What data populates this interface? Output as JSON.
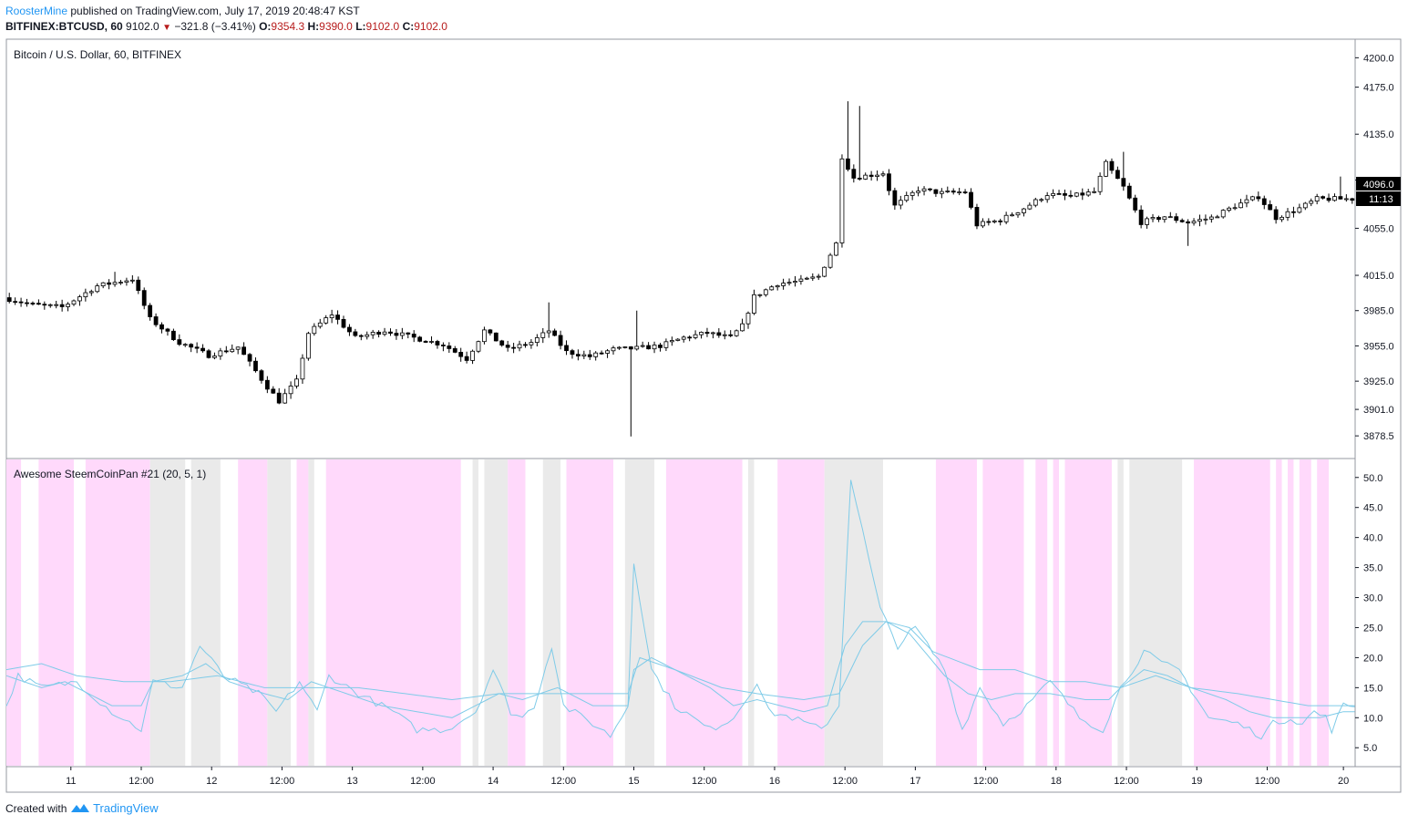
{
  "header": {
    "user": "RoosterMine",
    "published": " published on TradingView.com, July 17, 2019 20:48:47 KST",
    "symbol": "BITFINEX:BTCUSD, 60",
    "price": "9102.0",
    "arrow": "▼",
    "change": "−321.8 (−3.41%)",
    "o_label": "O:",
    "o_value": "9354.3",
    "h_label": "H:",
    "h_value": "9390.0",
    "l_label": "L:",
    "l_value": "9102.0",
    "c_label": "C:",
    "c_value": "9102.0"
  },
  "footer": {
    "created": "Created with",
    "brand": "TradingView"
  },
  "colors": {
    "bull": "#ffffff",
    "bear": "#000000",
    "wick": "#000000",
    "pink": "#ffd9fb",
    "gray": "#eaeaea",
    "line": "#7fcbe8",
    "axis": "#131722"
  },
  "chart_data": [
    {
      "type": "candlestick",
      "title": "Bitcoin / U.S. Dollar, 60, BITFINEX",
      "ylim": [
        3860,
        4215
      ],
      "y_ticks": [
        4200.0,
        4175.0,
        4135.0,
        4096.0,
        4055.0,
        4015.0,
        3985.0,
        3955.0,
        3925.0,
        3901.0,
        3878.5
      ],
      "y_tick_labels": [
        "4200.0",
        "4175.0",
        "4135.0",
        "4096.0",
        "4055.0",
        "4015.0",
        "3985.0",
        "3955.0",
        "3925.0",
        "3901.0",
        "3878.5"
      ],
      "last_price_label": "4096.0",
      "countdown_label": "11:13",
      "x_range": [
        0,
        230
      ],
      "x_ticks": [
        11,
        23,
        35,
        47,
        59,
        71,
        83,
        95,
        107,
        119,
        131,
        143,
        155,
        167,
        179,
        191,
        203,
        215,
        228
      ],
      "x_tick_labels": [
        "11",
        "12:00",
        "12",
        "12:00",
        "13",
        "12:00",
        "14",
        "12:00",
        "15",
        "12:00",
        "16",
        "12:00",
        "17",
        "12:00",
        "18",
        "12:00",
        "19",
        "12:00",
        "20"
      ],
      "anchors": [
        [
          0,
          3996
        ],
        [
          5,
          3990
        ],
        [
          10,
          3988
        ],
        [
          16,
          4006
        ],
        [
          22,
          4012
        ],
        [
          25,
          3978
        ],
        [
          30,
          3958
        ],
        [
          35,
          3947
        ],
        [
          40,
          3954
        ],
        [
          45,
          3920
        ],
        [
          47,
          3908
        ],
        [
          50,
          3925
        ],
        [
          52,
          3966
        ],
        [
          56,
          3982
        ],
        [
          60,
          3962
        ],
        [
          65,
          3968
        ],
        [
          70,
          3962
        ],
        [
          75,
          3956
        ],
        [
          79,
          3944
        ],
        [
          82,
          3968
        ],
        [
          86,
          3952
        ],
        [
          90,
          3958
        ],
        [
          93,
          3968
        ],
        [
          96,
          3950
        ],
        [
          100,
          3946
        ],
        [
          104,
          3952
        ],
        [
          108,
          3953
        ],
        [
          112,
          3955
        ],
        [
          116,
          3962
        ],
        [
          120,
          3966
        ],
        [
          124,
          3962
        ],
        [
          126,
          3972
        ],
        [
          128,
          3997
        ],
        [
          132,
          4008
        ],
        [
          136,
          4010
        ],
        [
          139,
          4014
        ],
        [
          142,
          4042
        ],
        [
          143,
          4116
        ],
        [
          145,
          4098
        ],
        [
          150,
          4102
        ],
        [
          152,
          4074
        ],
        [
          156,
          4088
        ],
        [
          160,
          4085
        ],
        [
          164,
          4086
        ],
        [
          166,
          4058
        ],
        [
          170,
          4062
        ],
        [
          174,
          4072
        ],
        [
          178,
          4084
        ],
        [
          182,
          4082
        ],
        [
          186,
          4086
        ],
        [
          188,
          4110
        ],
        [
          191,
          4090
        ],
        [
          194,
          4060
        ],
        [
          198,
          4065
        ],
        [
          202,
          4060
        ],
        [
          206,
          4064
        ],
        [
          210,
          4074
        ],
        [
          214,
          4082
        ],
        [
          217,
          4064
        ],
        [
          221,
          4072
        ],
        [
          224,
          4080
        ],
        [
          228,
          4080
        ]
      ],
      "spikes": [
        [
          106,
          3878
        ],
        [
          107,
          3985
        ],
        [
          143,
          4163
        ],
        [
          145,
          4159
        ],
        [
          18,
          4018
        ],
        [
          92,
          3992
        ],
        [
          190,
          4120
        ],
        [
          201,
          4040
        ],
        [
          227,
          4099
        ]
      ]
    },
    {
      "type": "line",
      "title": "Awesome SteemCoinPan #21 (20, 5, 1)",
      "ylim": [
        2,
        53
      ],
      "y_ticks": [
        50.0,
        45.0,
        40.0,
        35.0,
        30.0,
        25.0,
        20.0,
        15.0,
        10.0,
        5.0
      ],
      "y_tick_labels": [
        "50.0",
        "45.0",
        "40.0",
        "35.0",
        "30.0",
        "25.0",
        "20.0",
        "15.0",
        "10.0",
        "5.0"
      ],
      "bands": [
        {
          "from": 0,
          "to": 2.5,
          "color": "pink"
        },
        {
          "from": 5.5,
          "to": 11.5,
          "color": "pink"
        },
        {
          "from": 13.5,
          "to": 24.5,
          "color": "pink"
        },
        {
          "from": 24.5,
          "to": 30.5,
          "color": "gray"
        },
        {
          "from": 31.5,
          "to": 36.5,
          "color": "gray"
        },
        {
          "from": 39.5,
          "to": 44.5,
          "color": "pink"
        },
        {
          "from": 44.5,
          "to": 48.5,
          "color": "gray"
        },
        {
          "from": 49.5,
          "to": 51.5,
          "color": "pink"
        },
        {
          "from": 51.5,
          "to": 52.5,
          "color": "gray"
        },
        {
          "from": 54.5,
          "to": 77.5,
          "color": "pink"
        },
        {
          "from": 79.5,
          "to": 80.5,
          "color": "gray"
        },
        {
          "from": 81.5,
          "to": 85.5,
          "color": "gray"
        },
        {
          "from": 85.5,
          "to": 88.5,
          "color": "pink"
        },
        {
          "from": 91.5,
          "to": 94.5,
          "color": "gray"
        },
        {
          "from": 95.5,
          "to": 103.5,
          "color": "pink"
        },
        {
          "from": 105.5,
          "to": 110.5,
          "color": "gray"
        },
        {
          "from": 112.5,
          "to": 125.5,
          "color": "pink"
        },
        {
          "from": 126.5,
          "to": 127.5,
          "color": "gray"
        },
        {
          "from": 131.5,
          "to": 139.5,
          "color": "pink"
        },
        {
          "from": 139.5,
          "to": 149.5,
          "color": "gray"
        },
        {
          "from": 158.5,
          "to": 165.5,
          "color": "pink"
        },
        {
          "from": 166.5,
          "to": 173.5,
          "color": "pink"
        },
        {
          "from": 175.5,
          "to": 177.5,
          "color": "pink"
        },
        {
          "from": 178.5,
          "to": 179.5,
          "color": "pink"
        },
        {
          "from": 180.5,
          "to": 188.5,
          "color": "pink"
        },
        {
          "from": 189.5,
          "to": 190.5,
          "color": "gray"
        },
        {
          "from": 191.5,
          "to": 200.5,
          "color": "gray"
        },
        {
          "from": 202.5,
          "to": 215.5,
          "color": "pink"
        },
        {
          "from": 216.5,
          "to": 217.5,
          "color": "pink"
        },
        {
          "from": 218.5,
          "to": 219.5,
          "color": "pink"
        },
        {
          "from": 220.5,
          "to": 222.5,
          "color": "pink"
        },
        {
          "from": 223.5,
          "to": 225.5,
          "color": "pink"
        }
      ],
      "series": [
        {
          "values_anchors": [
            [
              0,
              12
            ],
            [
              2,
              17
            ],
            [
              6,
              15
            ],
            [
              12,
              16
            ],
            [
              18,
              11
            ],
            [
              23,
              8
            ],
            [
              25,
              16
            ],
            [
              30,
              15
            ],
            [
              33,
              22
            ],
            [
              37,
              17
            ],
            [
              43,
              14
            ],
            [
              46,
              11
            ],
            [
              50,
              16
            ],
            [
              53,
              11
            ],
            [
              55,
              17
            ],
            [
              60,
              14
            ],
            [
              66,
              11
            ],
            [
              70,
              8
            ],
            [
              75,
              8
            ],
            [
              80,
              11
            ],
            [
              83,
              18
            ],
            [
              86,
              11
            ],
            [
              88,
              10
            ],
            [
              90,
              12
            ],
            [
              93,
              22
            ],
            [
              95,
              12
            ],
            [
              100,
              9
            ],
            [
              103,
              7
            ],
            [
              106,
              12
            ],
            [
              107,
              36
            ],
            [
              110,
              18
            ],
            [
              114,
              12
            ],
            [
              120,
              8
            ],
            [
              124,
              10
            ],
            [
              128,
              16
            ],
            [
              130,
              11
            ],
            [
              134,
              10
            ],
            [
              139,
              8
            ],
            [
              142,
              12
            ],
            [
              144,
              50
            ],
            [
              146,
              41
            ],
            [
              149,
              28
            ],
            [
              152,
              22
            ],
            [
              155,
              25
            ],
            [
              160,
              18
            ],
            [
              163,
              8
            ],
            [
              166,
              15
            ],
            [
              170,
              9
            ],
            [
              174,
              12
            ],
            [
              178,
              16
            ],
            [
              183,
              10
            ],
            [
              187,
              8
            ],
            [
              190,
              15
            ],
            [
              194,
              21
            ],
            [
              197,
              19
            ],
            [
              200,
              18
            ],
            [
              205,
              10
            ],
            [
              210,
              9
            ],
            [
              214,
              7
            ],
            [
              216,
              9
            ],
            [
              219,
              10
            ],
            [
              221,
              9
            ],
            [
              223,
              11
            ],
            [
              225,
              10
            ],
            [
              226,
              8
            ],
            [
              228,
              12
            ]
          ]
        },
        {
          "values_anchors": [
            [
              0,
              17
            ],
            [
              6,
              15
            ],
            [
              10,
              16
            ],
            [
              14,
              14
            ],
            [
              18,
              12
            ],
            [
              23,
              12
            ],
            [
              25,
              16
            ],
            [
              30,
              17
            ],
            [
              34,
              19
            ],
            [
              38,
              16
            ],
            [
              44,
              14
            ],
            [
              48,
              13
            ],
            [
              52,
              16
            ],
            [
              58,
              14
            ],
            [
              64,
              12
            ],
            [
              70,
              11
            ],
            [
              76,
              10
            ],
            [
              80,
              12
            ],
            [
              84,
              14
            ],
            [
              88,
              13
            ],
            [
              94,
              15
            ],
            [
              100,
              12
            ],
            [
              106,
              12
            ],
            [
              107,
              18
            ],
            [
              110,
              20
            ],
            [
              116,
              17
            ],
            [
              120,
              15
            ],
            [
              124,
              12
            ],
            [
              128,
              13
            ],
            [
              132,
              12
            ],
            [
              136,
              11
            ],
            [
              140,
              12
            ],
            [
              143,
              22
            ],
            [
              146,
              26
            ],
            [
              150,
              26
            ],
            [
              154,
              24
            ],
            [
              160,
              17
            ],
            [
              164,
              14
            ],
            [
              168,
              13
            ],
            [
              172,
              14
            ],
            [
              178,
              14
            ],
            [
              184,
              13
            ],
            [
              188,
              13
            ],
            [
              190,
              15
            ],
            [
              194,
              18
            ],
            [
              198,
              17
            ],
            [
              202,
              15
            ],
            [
              208,
              13
            ],
            [
              212,
              11
            ],
            [
              216,
              10
            ],
            [
              220,
              10
            ],
            [
              224,
              10
            ],
            [
              228,
              11
            ]
          ]
        },
        {
          "values_anchors": [
            [
              0,
              18
            ],
            [
              6,
              19
            ],
            [
              12,
              17
            ],
            [
              20,
              16
            ],
            [
              28,
              16
            ],
            [
              36,
              17
            ],
            [
              44,
              15
            ],
            [
              52,
              15
            ],
            [
              60,
              15
            ],
            [
              68,
              14
            ],
            [
              76,
              13
            ],
            [
              84,
              14
            ],
            [
              92,
              14
            ],
            [
              100,
              14
            ],
            [
              106,
              14
            ],
            [
              108,
              20
            ],
            [
              114,
              18
            ],
            [
              122,
              15
            ],
            [
              128,
              14
            ],
            [
              136,
              13
            ],
            [
              142,
              14
            ],
            [
              146,
              22
            ],
            [
              150,
              26
            ],
            [
              154,
              25
            ],
            [
              158,
              21
            ],
            [
              166,
              18
            ],
            [
              172,
              18
            ],
            [
              178,
              16
            ],
            [
              184,
              16
            ],
            [
              190,
              15
            ],
            [
              196,
              17
            ],
            [
              202,
              15
            ],
            [
              210,
              14
            ],
            [
              216,
              13
            ],
            [
              222,
              12
            ],
            [
              228,
              12
            ]
          ]
        }
      ]
    }
  ]
}
